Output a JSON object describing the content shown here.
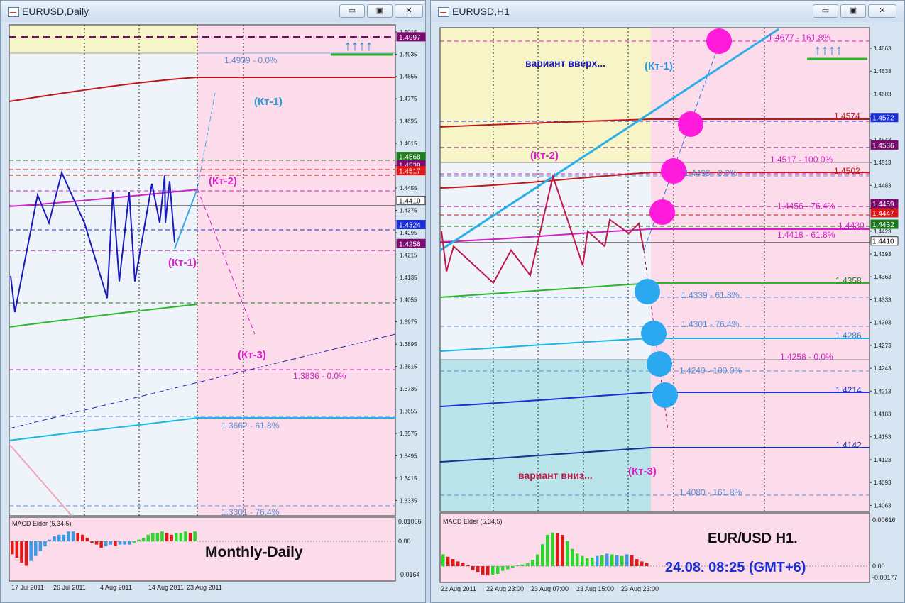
{
  "left_window": {
    "title": "EURUSD,Daily",
    "buttons": {
      "minimize": "▭",
      "maximize": "▣",
      "close": "✕"
    }
  },
  "right_window": {
    "title": "EURUSD,H1",
    "buttons": {
      "minimize": "▭",
      "maximize": "▣",
      "close": "✕"
    }
  },
  "chart_data": [
    {
      "type": "line",
      "symbol": "EURUSD,Daily",
      "ylim": [
        1.328,
        1.504
      ],
      "y_ticks": [
        "1.5015",
        "1.4935",
        "1.4855",
        "1.4775",
        "1.4695",
        "1.4615",
        "1.4535",
        "1.4455",
        "1.4375",
        "1.4295",
        "1.4215",
        "1.4135",
        "1.4055",
        "1.3975",
        "1.3895",
        "1.3815",
        "1.3735",
        "1.3655",
        "1.3575",
        "1.3495",
        "1.3415",
        "1.3335"
      ],
      "x_ticks": [
        "17 Jul 2011",
        "26 Jul 2011",
        "4 Aug 2011",
        "14 Aug 2011",
        "23 Aug 2011"
      ],
      "price_badges": [
        {
          "value": "1.4997",
          "color": "#7a0a6e"
        },
        {
          "value": "1.4568",
          "color": "#1d7a1d"
        },
        {
          "value": "1.4538",
          "color": "#7a0a6e"
        },
        {
          "value": "1.4517",
          "color": "#e01818"
        },
        {
          "value": "1.4410",
          "color": "#ffffff"
        },
        {
          "value": "1.4324",
          "color": "#1a2fd6"
        },
        {
          "value": "1.4256",
          "color": "#7a0a6e"
        }
      ],
      "levels": [
        {
          "label": "1.4939 - 0.0%",
          "color": "#5b8fd6"
        },
        {
          "label": "1.3836 - 0.0%",
          "color": "#d020c8"
        },
        {
          "label": "1.3662 - 61.8%",
          "color": "#5b8fd6"
        },
        {
          "label": "1.3301 - 76.4%",
          "color": "#5b8fd6"
        }
      ],
      "annotations": [
        "(Кт-1)",
        "(Кт-2)",
        "(Кт-1)",
        "(Кт-3)"
      ],
      "zigzag": [
        {
          "x": "14 Jul",
          "y": 1.414
        },
        {
          "x": "15 Jul",
          "y": 1.401
        },
        {
          "x": "19 Jul",
          "y": 1.443
        },
        {
          "x": "21 Jul",
          "y": 1.433
        },
        {
          "x": "25 Jul",
          "y": 1.451
        },
        {
          "x": "29 Jul",
          "y": 1.433
        },
        {
          "x": "2 Aug",
          "y": 1.406
        },
        {
          "x": "3 Aug",
          "y": 1.444
        },
        {
          "x": "4 Aug",
          "y": 1.412
        },
        {
          "x": "5 Aug",
          "y": 1.444
        },
        {
          "x": "8 Aug",
          "y": 1.412
        },
        {
          "x": "11 Aug",
          "y": 1.447
        },
        {
          "x": "12 Aug",
          "y": 1.433
        },
        {
          "x": "13 Aug",
          "y": 1.45
        },
        {
          "x": "14 Aug",
          "y": 1.433
        },
        {
          "x": "16 Aug",
          "y": 1.448
        },
        {
          "x": "17 Aug",
          "y": 1.426
        }
      ],
      "indicator": {
        "name": "MACD Elder (5,34,5)",
        "ticks": [
          "0.01066",
          "0.00",
          "-0.0164"
        ]
      },
      "caption": "Monthly-Daily"
    },
    {
      "type": "line",
      "symbol": "EURUSD,H1",
      "ylim": [
        1.4055,
        1.469
      ],
      "y_ticks": [
        "1.4663",
        "1.4633",
        "1.4603",
        "1.4573",
        "1.4543",
        "1.4513",
        "1.4483",
        "1.4453",
        "1.4423",
        "1.4393",
        "1.4363",
        "1.4333",
        "1.4303",
        "1.4273",
        "1.4243",
        "1.4213",
        "1.4183",
        "1.4153",
        "1.4123",
        "1.4093",
        "1.4063"
      ],
      "x_ticks": [
        "22 Aug 2011",
        "22 Aug 23:00",
        "23 Aug 07:00",
        "23 Aug 15:00",
        "23 Aug 23:00"
      ],
      "price_badges": [
        {
          "value": "1.4572",
          "color": "#1a2fd6"
        },
        {
          "value": "1.4536",
          "color": "#7a0a6e"
        },
        {
          "value": "1.4459",
          "color": "#7a0a6e"
        },
        {
          "value": "1.4447",
          "color": "#e01818"
        },
        {
          "value": "1.4432",
          "color": "#1d7a1d"
        },
        {
          "value": "1.4410",
          "color": "#ffffff"
        }
      ],
      "levels": [
        {
          "label": "1.4677 - 161.8%",
          "color": "#d020c8"
        },
        {
          "label": "1.4574",
          "color": "#c01818"
        },
        {
          "label": "1.4517 - 100.0%",
          "color": "#d020c8"
        },
        {
          "label": "1.4502",
          "color": "#c01818"
        },
        {
          "label": "1.4499 - 0.0%",
          "color": "#5b8fd6"
        },
        {
          "label": "1.4456 - 76.4%",
          "color": "#d020c8"
        },
        {
          "label": "1.4430",
          "color": "#d020c8"
        },
        {
          "label": "1.4418 - 61.8%",
          "color": "#d020c8"
        },
        {
          "label": "1.4358",
          "color": "#1d7a1d"
        },
        {
          "label": "1.4339 - 61.8%",
          "color": "#5b8fd6"
        },
        {
          "label": "1.4301 - 76.4%",
          "color": "#5b8fd6"
        },
        {
          "label": "1.4286",
          "color": "#1a8ad6"
        },
        {
          "label": "1.4258 - 0.0%",
          "color": "#d020c8"
        },
        {
          "label": "1.4240 - 100.0%",
          "color": "#5b8fd6"
        },
        {
          "label": "1.4214",
          "color": "#1a2fd6"
        },
        {
          "label": "1.4142",
          "color": "#1a2f96"
        },
        {
          "label": "1.4080 - 161.8%",
          "color": "#5b8fd6"
        }
      ],
      "annotations": [
        "вариант вверх...",
        "(Кт-1)",
        "(Кт-2)",
        "вариант вниз...",
        "(Кт-3)"
      ],
      "zigzag": [
        {
          "x": "22 Aug 00:00",
          "y": 1.4423
        },
        {
          "x": "22 Aug 02:00",
          "y": 1.437
        },
        {
          "x": "22 Aug 04:00",
          "y": 1.4403
        },
        {
          "x": "22 Aug 13:00",
          "y": 1.4355
        },
        {
          "x": "22 Aug 18:00",
          "y": 1.4398
        },
        {
          "x": "23 Aug 01:00",
          "y": 1.4365
        },
        {
          "x": "23 Aug 07:00",
          "y": 1.4495
        },
        {
          "x": "23 Aug 12:00",
          "y": 1.4378
        },
        {
          "x": "23 Aug 14:00",
          "y": 1.4423
        },
        {
          "x": "23 Aug 16:00",
          "y": 1.4403
        },
        {
          "x": "23 Aug 18:00",
          "y": 1.4438
        },
        {
          "x": "23 Aug 21:00",
          "y": 1.442
        },
        {
          "x": "23 Aug 23:00",
          "y": 1.4433
        },
        {
          "x": "24 Aug 00:00",
          "y": 1.4398
        }
      ],
      "indicator": {
        "name": "MACD Elder (5,34,5)",
        "ticks": [
          "0.00616",
          "0.00",
          "-0.00177"
        ]
      },
      "caption": "EUR/USD H1.",
      "caption_time": "24.08. 08:25 (GMT+6)"
    }
  ]
}
